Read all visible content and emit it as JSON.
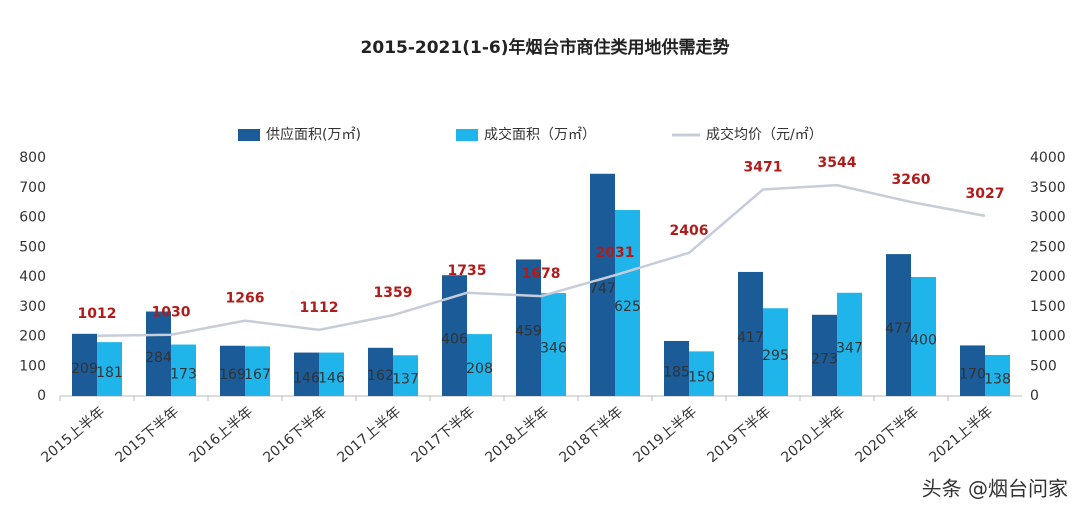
{
  "chart_data": {
    "type": "bar-line",
    "title": "2015-2021(1-6)年烟台市商住类用地供需走势",
    "categories": [
      "2015上半年",
      "2015下半年",
      "2016上半年",
      "2016下半年",
      "2017上半年",
      "2017下半年",
      "2018上半年",
      "2018下半年",
      "2019上半年",
      "2019下半年",
      "2020上半年",
      "2020下半年",
      "2021上半年"
    ],
    "series": [
      {
        "name": "供应面积(万㎡)",
        "color": "#1b5b97",
        "type": "bar",
        "values": [
          209,
          284,
          169,
          146,
          162,
          406,
          459,
          747,
          185,
          417,
          273,
          477,
          170
        ]
      },
      {
        "name": "成交面积（万㎡）",
        "color": "#1fb4ea",
        "type": "bar",
        "values": [
          181,
          173,
          167,
          146,
          137,
          208,
          346,
          625,
          150,
          295,
          347,
          400,
          138
        ]
      },
      {
        "name": "成交均价（元/㎡）",
        "color": "#c7ccdb",
        "type": "line",
        "axis": "y2",
        "values": [
          1012,
          1030,
          1266,
          1112,
          1359,
          1735,
          1678,
          2031,
          2406,
          3471,
          3544,
          3260,
          3027
        ]
      }
    ],
    "ylim": [
      0,
      800
    ],
    "yticks": [
      0,
      100,
      200,
      300,
      400,
      500,
      600,
      700,
      800
    ],
    "y2lim": [
      0,
      4000
    ],
    "y2ticks": [
      0,
      500,
      1000,
      1500,
      2000,
      2500,
      3000,
      3500,
      4000
    ],
    "watermark": "头条 @烟台问家"
  }
}
